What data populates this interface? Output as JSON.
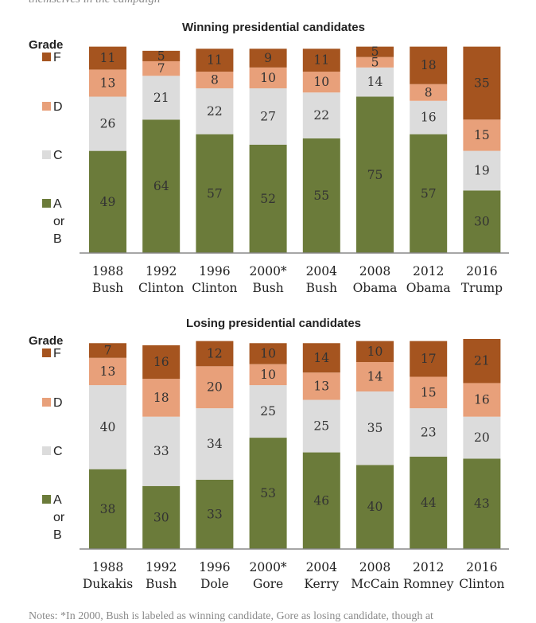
{
  "header_clip": "themselves in the campaign",
  "footer_clip": "Notes: *In 2000, Bush is labeled as winning candidate, Gore as losing candidate, though at",
  "legend": {
    "title": "Grade",
    "items": [
      {
        "key": "F",
        "lines": [
          "F"
        ]
      },
      {
        "key": "D",
        "lines": [
          "D"
        ]
      },
      {
        "key": "C",
        "lines": [
          "C"
        ]
      },
      {
        "key": "AB",
        "lines": [
          "A",
          "or",
          "B"
        ]
      }
    ]
  },
  "colors": {
    "AB": "#6b7b3a",
    "C": "#dcdcdc",
    "D": "#e8a07a",
    "F": "#a5541f",
    "axis": "#888888"
  },
  "chart_data": [
    {
      "type": "bar",
      "stacked": true,
      "title": "Winning presidential candidates",
      "categories": [
        [
          "1988",
          "Bush"
        ],
        [
          "1992",
          "Clinton"
        ],
        [
          "1996",
          "Clinton"
        ],
        [
          "2000*",
          "Bush"
        ],
        [
          "2004",
          "Bush"
        ],
        [
          "2008",
          "Obama"
        ],
        [
          "2012",
          "Obama"
        ],
        [
          "2016",
          "Trump"
        ]
      ],
      "series": [
        {
          "name": "A or B",
          "key": "AB",
          "values": [
            49,
            64,
            57,
            52,
            55,
            75,
            57,
            30
          ]
        },
        {
          "name": "C",
          "key": "C",
          "values": [
            26,
            21,
            22,
            27,
            22,
            14,
            16,
            19
          ]
        },
        {
          "name": "D",
          "key": "D",
          "values": [
            13,
            7,
            8,
            10,
            10,
            5,
            8,
            15
          ]
        },
        {
          "name": "F",
          "key": "F",
          "values": [
            11,
            5,
            11,
            9,
            11,
            5,
            18,
            35
          ]
        }
      ]
    },
    {
      "type": "bar",
      "stacked": true,
      "title": "Losing presidential candidates",
      "categories": [
        [
          "1988",
          "Dukakis"
        ],
        [
          "1992",
          "Bush"
        ],
        [
          "1996",
          "Dole"
        ],
        [
          "2000*",
          "Gore"
        ],
        [
          "2004",
          "Kerry"
        ],
        [
          "2008",
          "McCain"
        ],
        [
          "2012",
          "Romney"
        ],
        [
          "2016",
          "Clinton"
        ]
      ],
      "series": [
        {
          "name": "A or B",
          "key": "AB",
          "values": [
            38,
            30,
            33,
            53,
            46,
            40,
            44,
            43
          ]
        },
        {
          "name": "C",
          "key": "C",
          "values": [
            40,
            33,
            34,
            25,
            25,
            35,
            23,
            20
          ]
        },
        {
          "name": "D",
          "key": "D",
          "values": [
            13,
            18,
            20,
            10,
            13,
            14,
            15,
            16
          ]
        },
        {
          "name": "F",
          "key": "F",
          "values": [
            7,
            16,
            12,
            10,
            14,
            10,
            17,
            21
          ]
        }
      ]
    }
  ]
}
